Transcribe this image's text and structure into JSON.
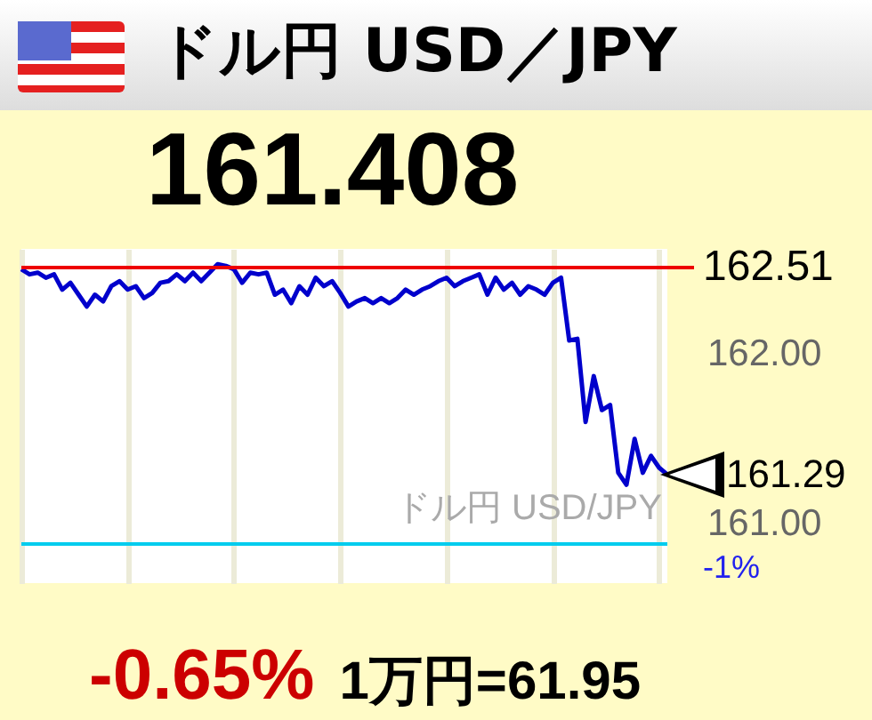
{
  "chart_data": {
    "type": "line",
    "title": "ドル円 USD／JPY",
    "subtitle": "161.408",
    "categories": [
      null,
      null,
      null,
      null,
      null,
      null,
      null,
      null,
      null,
      null,
      null,
      null,
      null,
      null,
      null,
      null,
      null,
      null,
      null,
      null,
      null,
      null,
      null,
      null,
      null,
      null,
      null,
      null,
      null,
      null,
      null,
      null,
      null,
      null,
      null,
      null,
      null,
      null,
      null,
      null,
      null,
      null,
      null,
      null,
      null,
      null,
      null,
      null,
      null,
      null,
      null,
      null,
      null,
      null,
      null,
      null,
      null,
      null,
      null,
      null,
      null,
      null,
      null,
      null,
      null,
      null,
      null,
      null,
      null,
      null,
      null,
      null,
      null,
      null,
      null,
      null,
      null,
      null,
      null,
      null
    ],
    "series": [
      {
        "color": "#0000cc",
        "values": [
          162.5,
          162.47,
          162.48,
          162.45,
          162.47,
          162.38,
          162.42,
          162.35,
          162.28,
          162.35,
          162.31,
          162.4,
          162.43,
          162.38,
          162.4,
          162.33,
          162.36,
          162.42,
          162.43,
          162.47,
          162.43,
          162.48,
          162.43,
          162.48,
          162.53,
          162.52,
          162.5,
          162.42,
          162.48,
          162.47,
          162.48,
          162.35,
          162.38,
          162.3,
          162.4,
          162.35,
          162.45,
          162.4,
          162.43,
          162.36,
          162.28,
          162.31,
          162.33,
          162.3,
          162.33,
          162.3,
          162.33,
          162.38,
          162.35,
          162.38,
          162.4,
          162.43,
          162.45,
          162.4,
          162.43,
          162.45,
          162.47,
          162.35,
          162.45,
          162.38,
          162.42,
          162.35,
          162.4,
          162.38,
          162.35,
          162.42,
          162.45,
          162.08,
          162.09,
          161.6,
          161.87,
          161.67,
          161.7,
          161.3,
          161.23,
          161.5,
          161.3,
          161.4,
          161.33,
          161.29
        ]
      }
    ],
    "ylim": [
      160.65,
      162.62
    ],
    "yticks": [
      {
        "value": 162,
        "label": "162.00"
      },
      {
        "value": 161,
        "label": "161.00"
      }
    ],
    "ref_lines": [
      {
        "axis": "y",
        "value": 162.51,
        "label": "162.51",
        "color": "#ee0000"
      },
      {
        "axis": "y",
        "value": 160.88,
        "color": "#00ccee"
      }
    ],
    "annotations": [
      "161.29",
      "ドル円 USD/JPY",
      "-0.65%",
      "1万円=61.95",
      "-1%"
    ],
    "grid": "x",
    "marker": "none",
    "line_style": "solid"
  }
}
